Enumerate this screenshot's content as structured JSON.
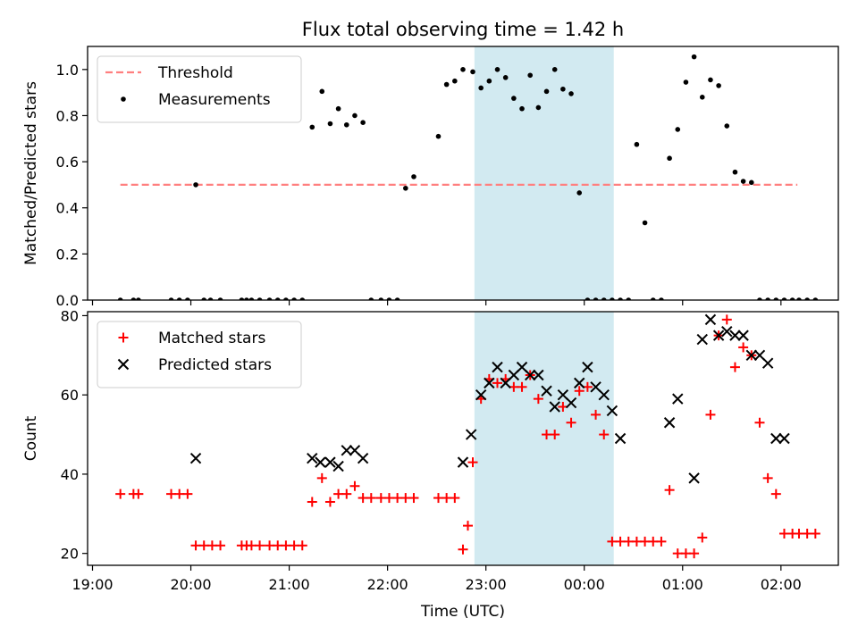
{
  "figure": {
    "title": "Flux total observing time = 1.42 h",
    "xlabel": "Time (UTC)"
  },
  "colors": {
    "threshold": "#ff7f7f",
    "measurement": "#000000",
    "matched": "#ff0000",
    "predicted": "#000000",
    "span": "#add8e6"
  },
  "chart_data": [
    {
      "type": "scatter",
      "ylabel": "Matched/Predicted stars",
      "ylim": [
        0,
        1.1
      ],
      "xlim": [
        "18:57",
        "02:35"
      ],
      "yticks": [
        0.0,
        0.2,
        0.4,
        0.6,
        0.8,
        1.0
      ],
      "xticks": [],
      "grid": false,
      "legend": "top-left",
      "shaded_span": [
        "22:53",
        "00:18"
      ],
      "threshold": {
        "name": "Threshold",
        "y": 0.5,
        "x_range": [
          "19:17",
          "02:10"
        ]
      },
      "series": [
        {
          "name": "Measurements",
          "x": [
            "19:17",
            "19:25",
            "19:28",
            "19:48",
            "19:53",
            "19:58",
            "20:03",
            "20:08",
            "20:12",
            "20:18",
            "20:31",
            "20:34",
            "20:37",
            "20:42",
            "20:48",
            "20:53",
            "20:58",
            "21:03",
            "21:08",
            "21:14",
            "21:20",
            "21:25",
            "21:30",
            "21:35",
            "21:40",
            "21:45",
            "21:50",
            "21:56",
            "22:01",
            "22:06",
            "22:11",
            "22:16",
            "22:31",
            "22:36",
            "22:41",
            "22:46",
            "22:52",
            "22:57",
            "23:02",
            "23:07",
            "23:12",
            "23:17",
            "23:22",
            "23:27",
            "23:32",
            "23:37",
            "23:42",
            "23:47",
            "23:52",
            "23:57",
            "00:02",
            "00:07",
            "00:12",
            "00:17",
            "00:22",
            "00:27",
            "00:32",
            "00:37",
            "00:42",
            "00:47",
            "00:52",
            "00:57",
            "01:02",
            "01:07",
            "01:12",
            "01:17",
            "01:22",
            "01:27",
            "01:32",
            "01:37",
            "01:42",
            "01:47",
            "01:52",
            "01:57",
            "02:02",
            "02:07",
            "02:11",
            "02:16",
            "02:21"
          ],
          "y": [
            0,
            0,
            0,
            0,
            0,
            0,
            0.5,
            0,
            0,
            0,
            0,
            0,
            0,
            0,
            0,
            0,
            0,
            0,
            0,
            0.75,
            0.905,
            0.765,
            0.83,
            0.76,
            0.8,
            0.77,
            0,
            0,
            0,
            0,
            0.485,
            0.535,
            0.71,
            0.935,
            0.95,
            1.0,
            0.99,
            0.92,
            0.95,
            1.0,
            0.965,
            0.875,
            0.83,
            0.975,
            0.835,
            0.905,
            1.0,
            0.915,
            0.895,
            0.465,
            0,
            0,
            0,
            0,
            0,
            0,
            0.675,
            0.335,
            0,
            0,
            0.615,
            0.74,
            0.945,
            1.055,
            0.88,
            0.955,
            0.93,
            0.755,
            0.555,
            0.515,
            0.51,
            0,
            0,
            0,
            0,
            0,
            0,
            0,
            0
          ]
        }
      ]
    },
    {
      "type": "scatter",
      "ylabel": "Count",
      "ylim": [
        17,
        81
      ],
      "xlim": [
        "18:57",
        "02:35"
      ],
      "yticks": [
        20,
        40,
        60,
        80
      ],
      "xticks": [
        "19:00",
        "20:00",
        "21:00",
        "22:00",
        "23:00",
        "00:00",
        "01:00",
        "02:00"
      ],
      "grid": false,
      "legend": "top-left",
      "shaded_span": [
        "22:53",
        "00:18"
      ],
      "series": [
        {
          "name": "Matched stars",
          "marker": "+",
          "x": [
            "19:17",
            "19:25",
            "19:28",
            "19:48",
            "19:53",
            "19:58",
            "20:03",
            "20:08",
            "20:13",
            "20:18",
            "20:31",
            "20:34",
            "20:37",
            "20:42",
            "20:48",
            "20:53",
            "20:58",
            "21:03",
            "21:08",
            "21:14",
            "21:20",
            "21:25",
            "21:30",
            "21:35",
            "21:40",
            "21:45",
            "21:50",
            "21:56",
            "22:01",
            "22:06",
            "22:11",
            "22:16",
            "22:31",
            "22:36",
            "22:41",
            "22:46",
            "22:49",
            "22:52",
            "22:57",
            "23:02",
            "23:07",
            "23:12",
            "23:17",
            "23:22",
            "23:27",
            "23:32",
            "23:37",
            "23:42",
            "23:47",
            "23:52",
            "23:57",
            "00:02",
            "00:07",
            "00:12",
            "00:17",
            "00:22",
            "00:27",
            "00:32",
            "00:37",
            "00:42",
            "00:47",
            "00:52",
            "00:57",
            "01:02",
            "01:07",
            "01:12",
            "01:17",
            "01:22",
            "01:27",
            "01:32",
            "01:37",
            "01:42",
            "01:47",
            "01:52",
            "01:57",
            "02:02",
            "02:07",
            "02:11",
            "02:16",
            "02:21"
          ],
          "y": [
            35,
            35,
            35,
            35,
            35,
            35,
            22,
            22,
            22,
            22,
            22,
            22,
            22,
            22,
            22,
            22,
            22,
            22,
            22,
            33,
            39,
            33,
            35,
            35,
            37,
            34,
            34,
            34,
            34,
            34,
            34,
            34,
            34,
            34,
            34,
            21,
            27,
            43,
            59,
            64,
            63,
            64,
            62,
            62,
            65,
            59,
            50,
            50,
            57,
            53,
            61,
            62,
            55,
            50,
            23,
            23,
            23,
            23,
            23,
            23,
            23,
            36,
            20,
            20,
            20,
            24,
            55,
            75,
            79,
            67,
            72,
            70,
            53,
            39,
            35,
            25,
            25,
            25,
            25,
            25
          ]
        },
        {
          "name": "Predicted stars",
          "marker": "x",
          "x": [
            "20:03",
            "21:14",
            "21:19",
            "21:25",
            "21:30",
            "21:35",
            "21:40",
            "21:45",
            "22:46",
            "22:51",
            "22:57",
            "23:02",
            "23:07",
            "23:12",
            "23:17",
            "23:22",
            "23:27",
            "23:32",
            "23:37",
            "23:42",
            "23:47",
            "23:52",
            "23:57",
            "00:02",
            "00:07",
            "00:12",
            "00:17",
            "00:22",
            "00:52",
            "00:57",
            "01:07",
            "01:12",
            "01:17",
            "01:22",
            "01:27",
            "01:32",
            "01:37",
            "01:42",
            "01:47",
            "01:52",
            "01:57",
            "02:02"
          ],
          "y": [
            44,
            44,
            43,
            43,
            42,
            46,
            46,
            44,
            43,
            50,
            60,
            63,
            67,
            63,
            65,
            67,
            65,
            65,
            61,
            57,
            60,
            58,
            63,
            67,
            62,
            60,
            56,
            49,
            53,
            59,
            39,
            74,
            79,
            75,
            76,
            75,
            75,
            70,
            70,
            68,
            49,
            49
          ]
        }
      ]
    }
  ]
}
